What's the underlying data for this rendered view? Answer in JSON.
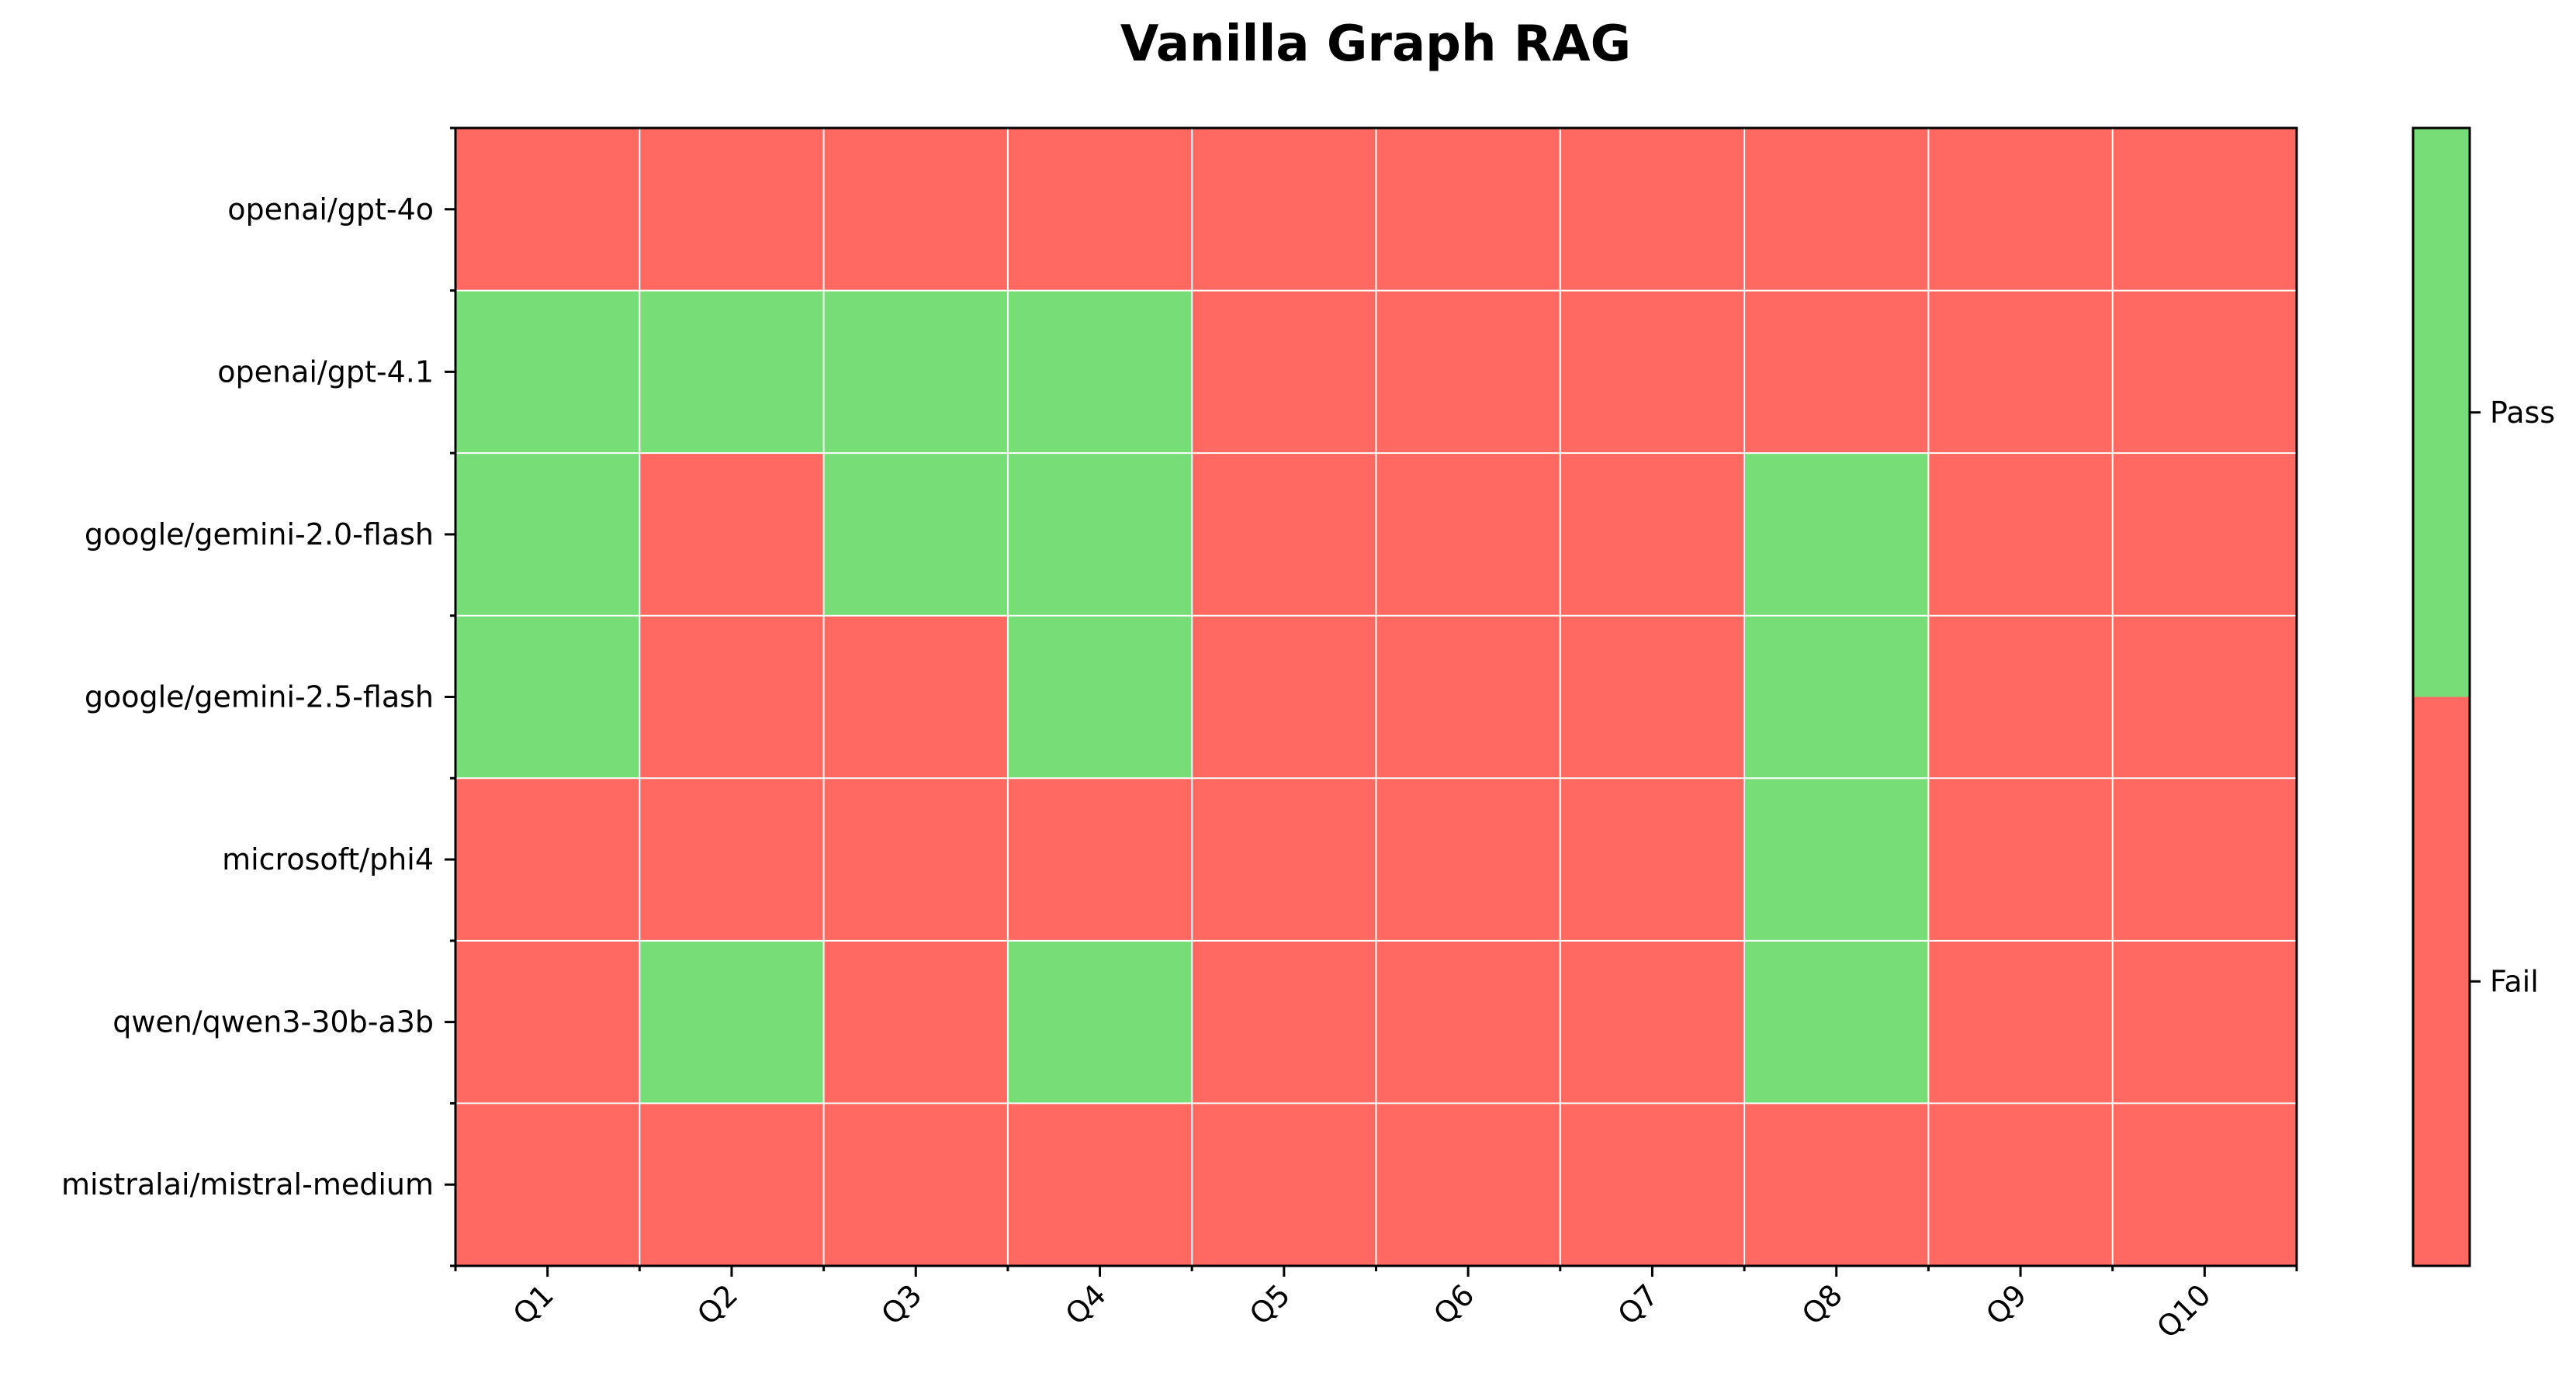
{
  "chart_data": {
    "type": "heatmap",
    "title": "Vanilla Graph RAG",
    "x_categories": [
      "Q1",
      "Q2",
      "Q3",
      "Q4",
      "Q5",
      "Q6",
      "Q7",
      "Q8",
      "Q9",
      "Q10"
    ],
    "y_categories": [
      "openai/gpt-4o",
      "openai/gpt-4.1",
      "google/gemini-2.0-flash",
      "google/gemini-2.5-flash",
      "microsoft/phi4",
      "qwen/qwen3-30b-a3b",
      "mistralai/mistral-medium"
    ],
    "values": [
      [
        0,
        0,
        0,
        0,
        0,
        0,
        0,
        0,
        0,
        0
      ],
      [
        1,
        1,
        1,
        1,
        0,
        0,
        0,
        0,
        0,
        0
      ],
      [
        1,
        0,
        1,
        1,
        0,
        0,
        0,
        1,
        0,
        0
      ],
      [
        1,
        0,
        0,
        1,
        0,
        0,
        0,
        1,
        0,
        0
      ],
      [
        0,
        0,
        0,
        0,
        0,
        0,
        0,
        1,
        0,
        0
      ],
      [
        0,
        1,
        0,
        1,
        0,
        0,
        0,
        1,
        0,
        0
      ],
      [
        0,
        0,
        0,
        0,
        0,
        0,
        0,
        0,
        0,
        0
      ]
    ],
    "colorbar": {
      "labels": [
        "Fail",
        "Pass"
      ],
      "colors": [
        "#ff6961",
        "#77dd77"
      ]
    },
    "grid": true,
    "legend": "right"
  }
}
